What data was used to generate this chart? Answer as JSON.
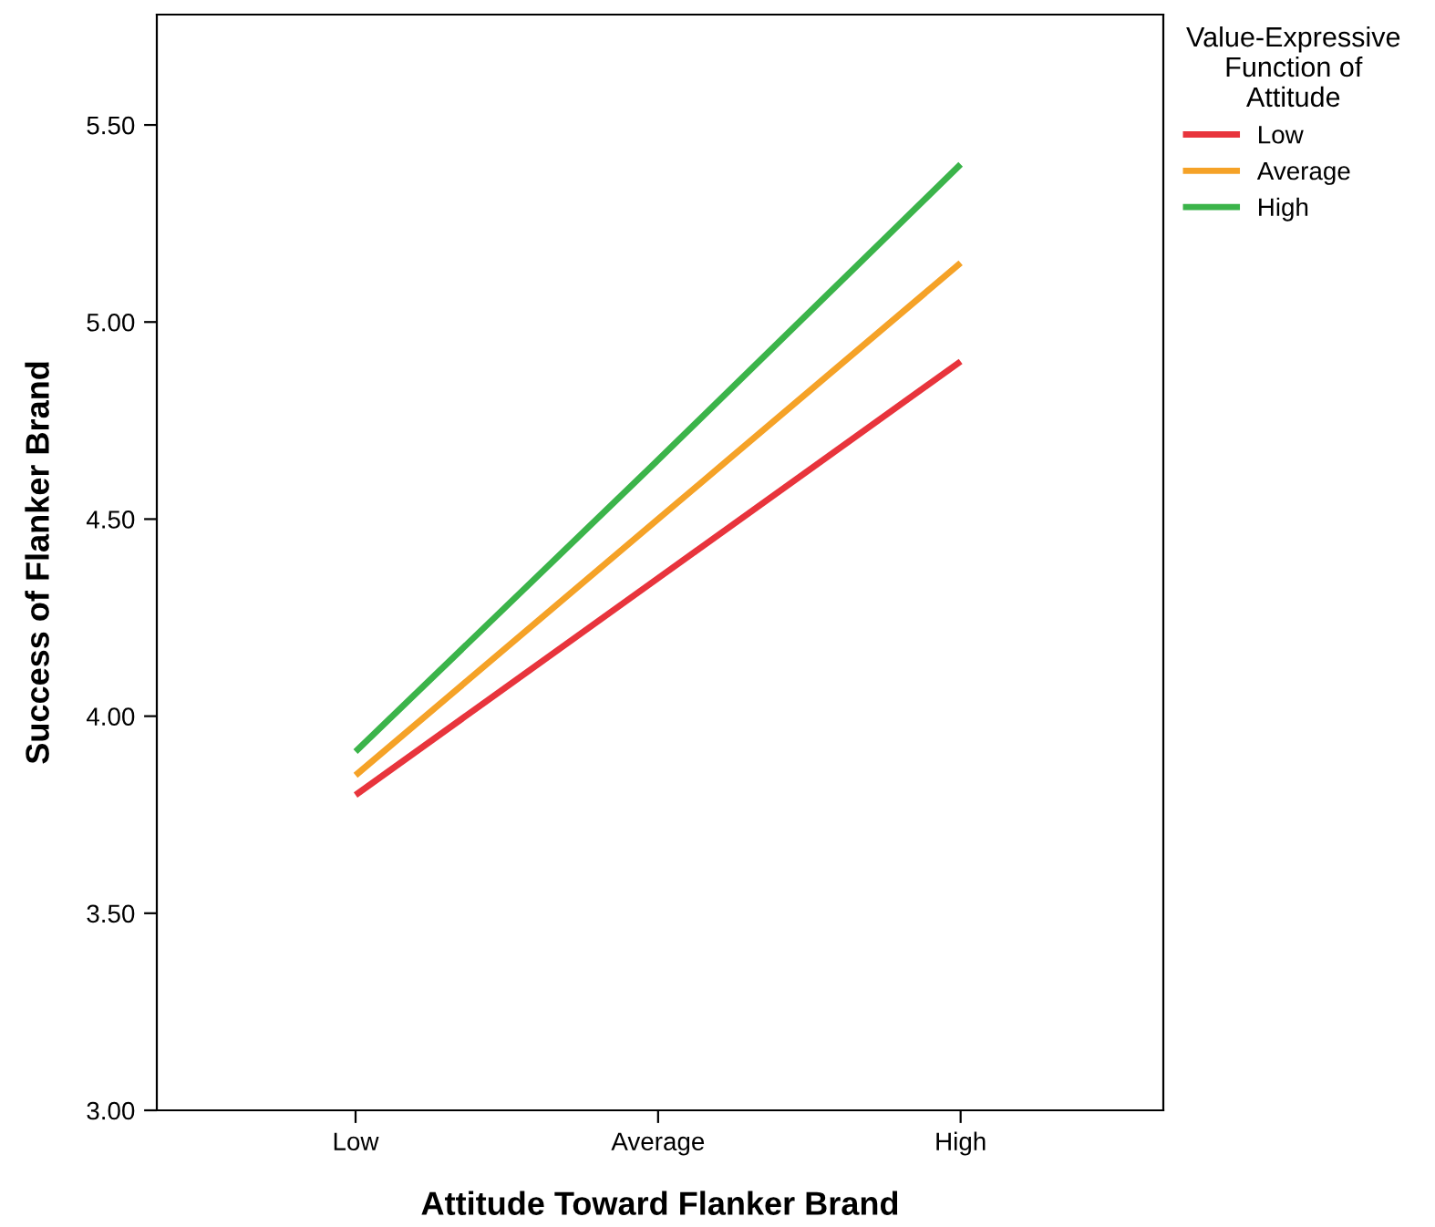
{
  "chart_data": {
    "type": "line",
    "xlabel": "Attitude Toward Flanker Brand",
    "ylabel": "Success of Flanker Brand",
    "legend_title": "Value-Expressive\nFunction of\nAttitude",
    "categories": [
      "Low",
      "Average",
      "High"
    ],
    "series": [
      {
        "name": "Low",
        "color": "#e8343c",
        "values": [
          3.8,
          4.35,
          4.9
        ]
      },
      {
        "name": "Average",
        "color": "#f5a227",
        "values": [
          3.85,
          4.5,
          5.15
        ]
      },
      {
        "name": "High",
        "color": "#3bb44a",
        "values": [
          3.91,
          4.65,
          5.4
        ]
      }
    ],
    "ylim": [
      3.0,
      5.78
    ],
    "yticks": [
      {
        "value": 3.0,
        "label": "3.00"
      },
      {
        "value": 3.5,
        "label": "3.50"
      },
      {
        "value": 4.0,
        "label": "4.00"
      },
      {
        "value": 4.5,
        "label": "4.50"
      },
      {
        "value": 5.0,
        "label": "5.00"
      },
      {
        "value": 5.5,
        "label": "5.50"
      }
    ],
    "grid": false,
    "legend": "top right",
    "marker": "none",
    "line_style": "solid"
  }
}
